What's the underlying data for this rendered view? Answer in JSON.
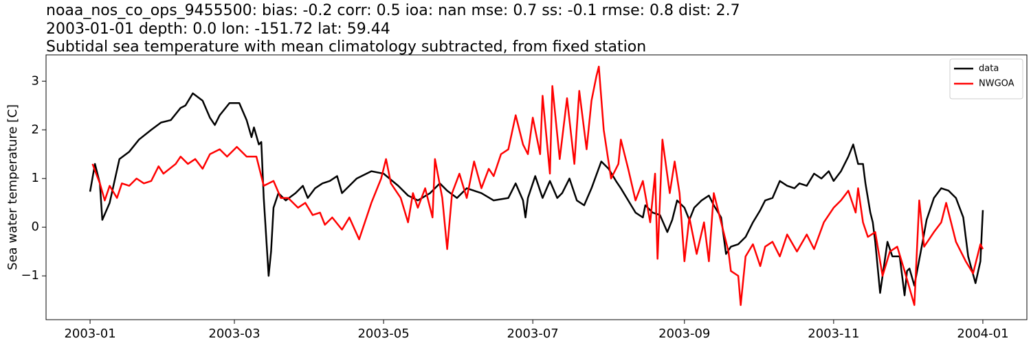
{
  "chart_data": {
    "type": "line",
    "title_lines": [
      "noaa_nos_co_ops_9455500: bias: -0.2  corr: 0.5  ioa: nan  mse: 0.7  ss: -0.1  rmse: 0.8  dist: 2.7",
      "2003-01-01 depth: 0.0 lon: -151.72 lat: 59.44",
      "Subtidal sea temperature with mean climatology subtracted, from fixed station"
    ],
    "ylabel": "Sea water temperature [C]",
    "xlim": [
      "2002-12-14",
      "2004-01-19"
    ],
    "xticks": [
      "2003-01",
      "2003-03",
      "2003-05",
      "2003-07",
      "2003-09",
      "2003-11",
      "2004-01"
    ],
    "ylim": [
      -1.9,
      3.54
    ],
    "yticks": [
      {
        "value": -1,
        "label": "−1"
      },
      0,
      1,
      2,
      3
    ],
    "grid": false,
    "legend": "upper right",
    "series": [
      {
        "name": "data",
        "color": "#000000",
        "x": [
          "2003-01-01",
          "2003-01-03",
          "2003-01-05",
          "2003-01-06",
          "2003-01-09",
          "2003-01-13",
          "2003-01-17",
          "2003-01-21",
          "2003-01-26",
          "2003-01-30",
          "2003-02-03",
          "2003-02-07",
          "2003-02-09",
          "2003-02-12",
          "2003-02-16",
          "2003-02-19",
          "2003-02-21",
          "2003-02-23",
          "2003-02-27",
          "2003-03-03",
          "2003-03-06",
          "2003-03-08",
          "2003-03-09",
          "2003-03-11",
          "2003-03-12",
          "2003-03-13",
          "2003-03-15",
          "2003-03-16",
          "2003-03-17",
          "2003-03-19",
          "2003-03-22",
          "2003-03-26",
          "2003-03-29",
          "2003-03-31",
          "2003-04-03",
          "2003-04-06",
          "2003-04-09",
          "2003-04-12",
          "2003-04-14",
          "2003-04-17",
          "2003-04-20",
          "2003-04-26",
          "2003-05-01",
          "2003-05-07",
          "2003-05-11",
          "2003-05-15",
          "2003-05-20",
          "2003-05-24",
          "2003-05-27",
          "2003-05-31",
          "2003-06-04",
          "2003-06-10",
          "2003-06-15",
          "2003-06-21",
          "2003-06-24",
          "2003-06-27",
          "2003-06-28",
          "2003-06-29",
          "2003-07-02",
          "2003-07-05",
          "2003-07-08",
          "2003-07-11",
          "2003-07-13",
          "2003-07-16",
          "2003-07-19",
          "2003-07-22",
          "2003-07-25",
          "2003-07-29",
          "2003-08-01",
          "2003-08-04",
          "2003-08-06",
          "2003-08-09",
          "2003-08-12",
          "2003-08-15",
          "2003-08-16",
          "2003-08-19",
          "2003-08-22",
          "2003-08-25",
          "2003-08-27",
          "2003-08-29",
          "2003-09-01",
          "2003-09-03",
          "2003-09-05",
          "2003-09-08",
          "2003-09-11",
          "2003-09-13",
          "2003-09-16",
          "2003-09-18",
          "2003-09-20",
          "2003-09-23",
          "2003-09-26",
          "2003-09-29",
          "2003-10-02",
          "2003-10-04",
          "2003-10-07",
          "2003-10-10",
          "2003-10-13",
          "2003-10-16",
          "2003-10-18",
          "2003-10-21",
          "2003-10-24",
          "2003-10-27",
          "2003-10-30",
          "2003-11-01",
          "2003-11-04",
          "2003-11-07",
          "2003-11-09",
          "2003-11-10",
          "2003-11-11",
          "2003-11-13",
          "2003-11-14",
          "2003-11-16",
          "2003-11-17",
          "2003-11-18",
          "2003-11-20",
          "2003-11-23",
          "2003-11-25",
          "2003-11-28",
          "2003-11-30",
          "2003-12-01",
          "2003-12-02",
          "2003-12-04",
          "2003-12-07",
          "2003-12-09",
          "2003-12-12",
          "2003-12-15",
          "2003-12-18",
          "2003-12-21",
          "2003-12-24",
          "2003-12-26",
          "2003-12-29",
          "2003-12-31",
          "2004-01-01"
        ],
        "values": [
          0.73,
          1.3,
          0.9,
          0.15,
          0.5,
          1.4,
          1.55,
          1.8,
          2.0,
          2.15,
          2.2,
          2.45,
          2.5,
          2.75,
          2.6,
          2.25,
          2.1,
          2.3,
          2.55,
          2.55,
          2.2,
          1.85,
          2.05,
          1.7,
          1.75,
          0.6,
          -1.0,
          -0.5,
          0.4,
          0.7,
          0.55,
          0.7,
          0.85,
          0.6,
          0.8,
          0.9,
          0.95,
          1.05,
          0.7,
          0.85,
          1.0,
          1.15,
          1.1,
          0.85,
          0.65,
          0.55,
          0.7,
          0.9,
          0.75,
          0.6,
          0.8,
          0.7,
          0.55,
          0.6,
          0.9,
          0.55,
          0.2,
          0.6,
          1.05,
          0.6,
          0.95,
          0.6,
          0.7,
          1.0,
          0.55,
          0.45,
          0.8,
          1.35,
          1.2,
          0.95,
          0.8,
          0.55,
          0.3,
          0.2,
          0.45,
          0.3,
          0.25,
          -0.1,
          0.15,
          0.55,
          0.4,
          0.15,
          0.4,
          0.55,
          0.65,
          0.45,
          0.2,
          -0.55,
          -0.4,
          -0.35,
          -0.2,
          0.1,
          0.35,
          0.55,
          0.6,
          0.95,
          0.85,
          0.8,
          0.9,
          0.85,
          1.1,
          1.0,
          1.15,
          0.95,
          1.15,
          1.45,
          1.7,
          1.5,
          1.3,
          1.3,
          0.9,
          0.3,
          0.1,
          -0.3,
          -1.35,
          -0.3,
          -0.6,
          -0.6,
          -1.4,
          -0.9,
          -0.85,
          -1.2,
          -0.4,
          0.15,
          0.6,
          0.8,
          0.75,
          0.6,
          0.2,
          -0.6,
          -1.15,
          -0.7,
          0.35
        ]
      },
      {
        "name": "NWGOA",
        "color": "#ff0000",
        "x": [
          "2003-01-02",
          "2003-01-05",
          "2003-01-07",
          "2003-01-09",
          "2003-01-12",
          "2003-01-14",
          "2003-01-17",
          "2003-01-20",
          "2003-01-23",
          "2003-01-26",
          "2003-01-29",
          "2003-01-31",
          "2003-02-05",
          "2003-02-07",
          "2003-02-10",
          "2003-02-13",
          "2003-02-16",
          "2003-02-19",
          "2003-02-23",
          "2003-02-26",
          "2003-03-02",
          "2003-03-06",
          "2003-03-10",
          "2003-03-13",
          "2003-03-17",
          "2003-03-20",
          "2003-03-23",
          "2003-03-27",
          "2003-03-30",
          "2003-04-02",
          "2003-04-05",
          "2003-04-07",
          "2003-04-10",
          "2003-04-14",
          "2003-04-17",
          "2003-04-21",
          "2003-04-26",
          "2003-04-30",
          "2003-05-02",
          "2003-05-04",
          "2003-05-08",
          "2003-05-11",
          "2003-05-13",
          "2003-05-15",
          "2003-05-18",
          "2003-05-21",
          "2003-05-22",
          "2003-05-25",
          "2003-05-27",
          "2003-05-29",
          "2003-06-01",
          "2003-06-04",
          "2003-06-07",
          "2003-06-10",
          "2003-06-13",
          "2003-06-15",
          "2003-06-18",
          "2003-06-21",
          "2003-06-24",
          "2003-06-27",
          "2003-06-29",
          "2003-07-01",
          "2003-07-04",
          "2003-07-05",
          "2003-07-08",
          "2003-07-09",
          "2003-07-12",
          "2003-07-15",
          "2003-07-18",
          "2003-07-20",
          "2003-07-23",
          "2003-07-25",
          "2003-07-27",
          "2003-07-28",
          "2003-07-30",
          "2003-08-02",
          "2003-08-05",
          "2003-08-06",
          "2003-08-09",
          "2003-08-12",
          "2003-08-15",
          "2003-08-18",
          "2003-08-20",
          "2003-08-21",
          "2003-08-23",
          "2003-08-26",
          "2003-08-28",
          "2003-08-30",
          "2003-09-01",
          "2003-09-03",
          "2003-09-06",
          "2003-09-09",
          "2003-09-11",
          "2003-09-13",
          "2003-09-16",
          "2003-09-19",
          "2003-09-20",
          "2003-09-23",
          "2003-09-24",
          "2003-09-26",
          "2003-09-29",
          "2003-10-02",
          "2003-10-04",
          "2003-10-07",
          "2003-10-10",
          "2003-10-13",
          "2003-10-17",
          "2003-10-21",
          "2003-10-24",
          "2003-10-28",
          "2003-11-01",
          "2003-11-04",
          "2003-11-07",
          "2003-11-10",
          "2003-11-11",
          "2003-11-13",
          "2003-11-15",
          "2003-11-18",
          "2003-11-21",
          "2003-11-24",
          "2003-11-27",
          "2003-11-30",
          "2003-12-04",
          "2003-12-06",
          "2003-12-08",
          "2003-12-12",
          "2003-12-15",
          "2003-12-17",
          "2003-12-21",
          "2003-12-25",
          "2003-12-28",
          "2003-12-31",
          "2004-01-01"
        ],
        "values": [
          1.3,
          0.9,
          0.55,
          0.85,
          0.6,
          0.9,
          0.85,
          1.0,
          0.9,
          0.95,
          1.25,
          1.1,
          1.3,
          1.45,
          1.3,
          1.4,
          1.2,
          1.5,
          1.6,
          1.45,
          1.65,
          1.45,
          1.45,
          0.85,
          0.95,
          0.6,
          0.6,
          0.4,
          0.5,
          0.25,
          0.3,
          0.05,
          0.2,
          -0.05,
          0.2,
          -0.25,
          0.5,
          1.0,
          1.4,
          0.9,
          0.6,
          0.1,
          0.7,
          0.4,
          0.8,
          0.2,
          1.4,
          0.6,
          -0.45,
          0.7,
          1.1,
          0.6,
          1.35,
          0.8,
          1.2,
          1.05,
          1.5,
          1.6,
          2.3,
          1.7,
          1.5,
          2.25,
          1.5,
          2.7,
          1.1,
          2.9,
          1.4,
          2.65,
          1.3,
          2.8,
          1.6,
          2.6,
          3.1,
          3.3,
          2.0,
          1.0,
          1.3,
          1.8,
          1.2,
          0.55,
          0.95,
          0.1,
          1.1,
          -0.65,
          1.8,
          0.7,
          1.35,
          0.7,
          -0.7,
          0.2,
          -0.55,
          0.1,
          -0.7,
          0.7,
          0.1,
          -0.5,
          -0.9,
          -1.0,
          -1.6,
          -0.6,
          -0.35,
          -0.8,
          -0.4,
          -0.3,
          -0.6,
          -0.15,
          -0.5,
          -0.15,
          -0.45,
          0.1,
          0.4,
          0.55,
          0.75,
          0.3,
          0.8,
          0.1,
          -0.2,
          -0.1,
          -1.0,
          -0.5,
          -0.4,
          -0.9,
          -1.6,
          0.55,
          -0.4,
          -0.1,
          0.1,
          0.5,
          -0.3,
          -0.7,
          -0.95,
          -0.35,
          -0.45
        ]
      }
    ]
  }
}
